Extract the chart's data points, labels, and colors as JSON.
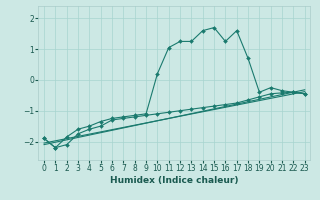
{
  "title": "",
  "xlabel": "Humidex (Indice chaleur)",
  "ylabel": "",
  "xlim": [
    -0.5,
    23.5
  ],
  "ylim": [
    -2.6,
    2.4
  ],
  "yticks": [
    -2,
    -1,
    0,
    1,
    2
  ],
  "xticks": [
    0,
    1,
    2,
    3,
    4,
    5,
    6,
    7,
    8,
    9,
    10,
    11,
    12,
    13,
    14,
    15,
    16,
    17,
    18,
    19,
    20,
    21,
    22,
    23
  ],
  "bg_color": "#cce8e4",
  "grid_color": "#a8d4cf",
  "line_color": "#1a7a6e",
  "line1": {
    "x": [
      0,
      1,
      2,
      3,
      4,
      5,
      6,
      7,
      8,
      9,
      10,
      11,
      12,
      13,
      14,
      15,
      16,
      17,
      18,
      19,
      20,
      21,
      22,
      23
    ],
    "y": [
      -1.9,
      -2.2,
      -1.85,
      -1.6,
      -1.5,
      -1.35,
      -1.25,
      -1.2,
      -1.15,
      -1.1,
      0.2,
      1.05,
      1.25,
      1.25,
      1.6,
      1.7,
      1.25,
      1.6,
      0.7,
      -0.4,
      -0.25,
      -0.35,
      -0.4,
      -0.45
    ]
  },
  "line2": {
    "x": [
      0,
      1,
      2,
      3,
      4,
      5,
      6,
      7,
      8,
      9,
      10,
      11,
      12,
      13,
      14,
      15,
      16,
      17,
      18,
      19,
      20,
      21,
      22,
      23
    ],
    "y": [
      -1.9,
      -2.2,
      -2.1,
      -1.75,
      -1.6,
      -1.5,
      -1.3,
      -1.25,
      -1.2,
      -1.15,
      -1.1,
      -1.05,
      -1.0,
      -0.95,
      -0.9,
      -0.85,
      -0.8,
      -0.75,
      -0.65,
      -0.55,
      -0.45,
      -0.42,
      -0.4,
      -0.45
    ]
  },
  "line3": {
    "x": [
      0,
      23
    ],
    "y": [
      -2.05,
      -0.38
    ]
  },
  "line4": {
    "x": [
      0,
      23
    ],
    "y": [
      -2.1,
      -0.32
    ]
  }
}
